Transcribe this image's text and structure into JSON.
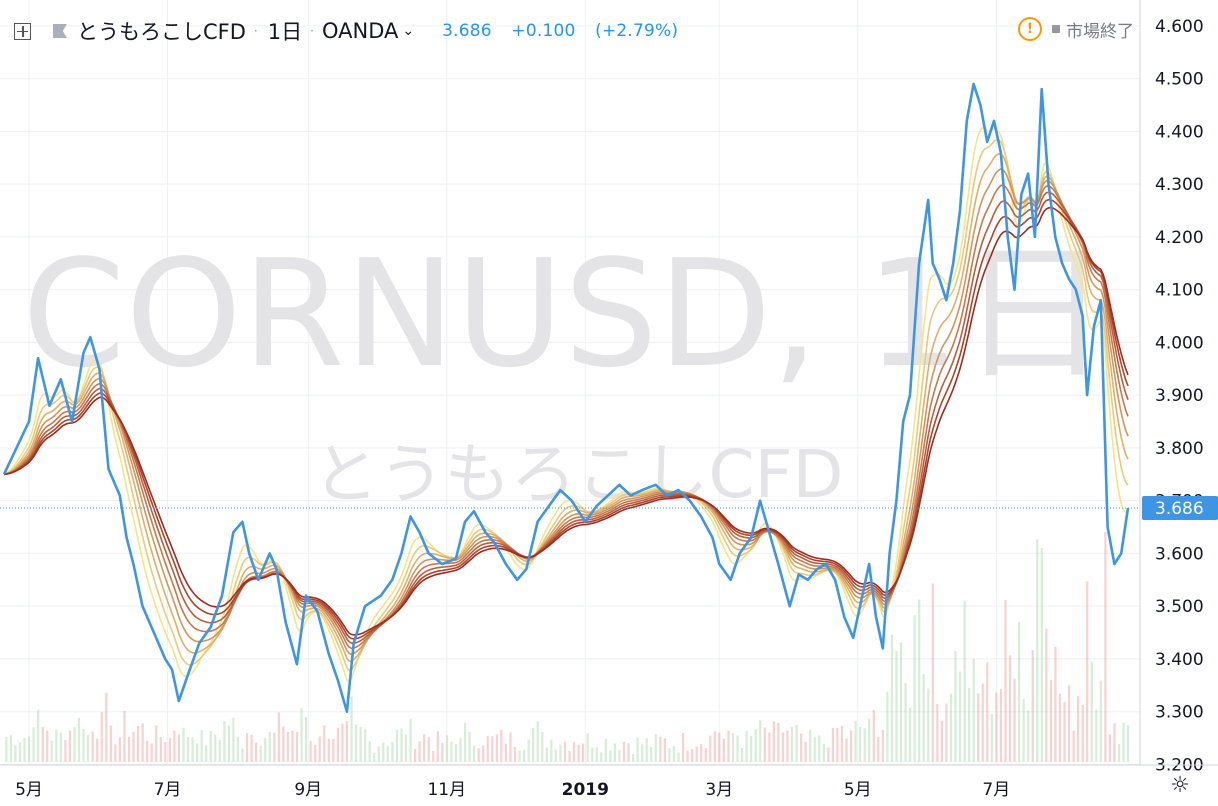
{
  "header": {
    "symbol_name": "とうもろこしCFD",
    "timeframe": "1日",
    "exchange": "OANDA",
    "last": "3.686",
    "change": "+0.100",
    "change_pct": "(+2.79%)"
  },
  "status": {
    "label": "市場終了"
  },
  "watermark": {
    "line1": "CORNUSD, 1日",
    "line2": "とうもろこしCFD"
  },
  "price_badge": "3.686",
  "colors": {
    "price_line": "#3d95e3",
    "badge_bg": "#3d95e3",
    "grid": "#eef0f3",
    "vol_up": "#a5d6a7",
    "vol_down": "#ef9a9a",
    "ribbon_fast": "#f7e38a",
    "ribbon_slow": "#a02a1e",
    "warning": "#ff9800"
  },
  "chart_data": {
    "type": "line",
    "title": "とうもろこしCFD, 1日, OANDA",
    "x_axis": {
      "ticks": [
        "5月",
        "7月",
        "9月",
        "11月",
        "2019",
        "3月",
        "5月",
        "7月"
      ],
      "start": "2018-04-20",
      "end": "2019-08-28"
    },
    "y_axis": {
      "ticks": [
        "3.200",
        "3.300",
        "3.400",
        "3.500",
        "3.600",
        "3.700",
        "3.800",
        "3.900",
        "4.000",
        "4.100",
        "4.200",
        "4.300",
        "4.400",
        "4.500",
        "4.600"
      ],
      "min": 3.18,
      "max": 4.63
    },
    "series": [
      {
        "name": "CORNUSD",
        "points": [
          [
            "2018-04-20",
            3.75
          ],
          [
            "2018-05-01",
            3.85
          ],
          [
            "2018-05-05",
            3.97
          ],
          [
            "2018-05-10",
            3.88
          ],
          [
            "2018-05-15",
            3.93
          ],
          [
            "2018-05-20",
            3.85
          ],
          [
            "2018-05-25",
            3.98
          ],
          [
            "2018-05-28",
            4.01
          ],
          [
            "2018-06-01",
            3.95
          ],
          [
            "2018-06-05",
            3.76
          ],
          [
            "2018-06-10",
            3.71
          ],
          [
            "2018-06-13",
            3.63
          ],
          [
            "2018-06-16",
            3.58
          ],
          [
            "2018-06-20",
            3.5
          ],
          [
            "2018-06-25",
            3.45
          ],
          [
            "2018-06-30",
            3.4
          ],
          [
            "2018-07-03",
            3.38
          ],
          [
            "2018-07-06",
            3.32
          ],
          [
            "2018-07-10",
            3.37
          ],
          [
            "2018-07-15",
            3.43
          ],
          [
            "2018-07-20",
            3.46
          ],
          [
            "2018-07-25",
            3.52
          ],
          [
            "2018-07-30",
            3.64
          ],
          [
            "2018-08-03",
            3.66
          ],
          [
            "2018-08-06",
            3.6
          ],
          [
            "2018-08-10",
            3.55
          ],
          [
            "2018-08-15",
            3.6
          ],
          [
            "2018-08-18",
            3.57
          ],
          [
            "2018-08-22",
            3.47
          ],
          [
            "2018-08-27",
            3.39
          ],
          [
            "2018-08-31",
            3.52
          ],
          [
            "2018-09-05",
            3.49
          ],
          [
            "2018-09-10",
            3.41
          ],
          [
            "2018-09-14",
            3.36
          ],
          [
            "2018-09-18",
            3.3
          ],
          [
            "2018-09-21",
            3.43
          ],
          [
            "2018-09-26",
            3.5
          ],
          [
            "2018-10-03",
            3.52
          ],
          [
            "2018-10-08",
            3.55
          ],
          [
            "2018-10-12",
            3.6
          ],
          [
            "2018-10-16",
            3.67
          ],
          [
            "2018-10-20",
            3.64
          ],
          [
            "2018-10-24",
            3.6
          ],
          [
            "2018-10-30",
            3.58
          ],
          [
            "2018-11-05",
            3.59
          ],
          [
            "2018-11-09",
            3.66
          ],
          [
            "2018-11-13",
            3.68
          ],
          [
            "2018-11-18",
            3.64
          ],
          [
            "2018-11-22",
            3.62
          ],
          [
            "2018-11-27",
            3.58
          ],
          [
            "2018-12-02",
            3.55
          ],
          [
            "2018-12-06",
            3.57
          ],
          [
            "2018-12-11",
            3.66
          ],
          [
            "2018-12-16",
            3.69
          ],
          [
            "2018-12-21",
            3.72
          ],
          [
            "2018-12-26",
            3.7
          ],
          [
            "2019-01-01",
            3.66
          ],
          [
            "2019-01-06",
            3.69
          ],
          [
            "2019-01-11",
            3.71
          ],
          [
            "2019-01-16",
            3.73
          ],
          [
            "2019-01-21",
            3.71
          ],
          [
            "2019-01-26",
            3.72
          ],
          [
            "2019-02-01",
            3.73
          ],
          [
            "2019-02-06",
            3.71
          ],
          [
            "2019-02-11",
            3.72
          ],
          [
            "2019-02-16",
            3.7
          ],
          [
            "2019-02-21",
            3.67
          ],
          [
            "2019-02-26",
            3.63
          ],
          [
            "2019-03-01",
            3.58
          ],
          [
            "2019-03-06",
            3.55
          ],
          [
            "2019-03-10",
            3.6
          ],
          [
            "2019-03-15",
            3.63
          ],
          [
            "2019-03-19",
            3.7
          ],
          [
            "2019-03-23",
            3.64
          ],
          [
            "2019-03-27",
            3.58
          ],
          [
            "2019-04-01",
            3.5
          ],
          [
            "2019-04-05",
            3.56
          ],
          [
            "2019-04-09",
            3.55
          ],
          [
            "2019-04-13",
            3.57
          ],
          [
            "2019-04-17",
            3.58
          ],
          [
            "2019-04-21",
            3.55
          ],
          [
            "2019-04-25",
            3.48
          ],
          [
            "2019-04-29",
            3.44
          ],
          [
            "2019-05-03",
            3.52
          ],
          [
            "2019-05-06",
            3.58
          ],
          [
            "2019-05-09",
            3.48
          ],
          [
            "2019-05-12",
            3.42
          ],
          [
            "2019-05-15",
            3.6
          ],
          [
            "2019-05-18",
            3.7
          ],
          [
            "2019-05-21",
            3.85
          ],
          [
            "2019-05-24",
            3.9
          ],
          [
            "2019-05-28",
            4.15
          ],
          [
            "2019-06-01",
            4.27
          ],
          [
            "2019-06-03",
            4.15
          ],
          [
            "2019-06-06",
            4.12
          ],
          [
            "2019-06-09",
            4.08
          ],
          [
            "2019-06-12",
            4.15
          ],
          [
            "2019-06-15",
            4.25
          ],
          [
            "2019-06-18",
            4.42
          ],
          [
            "2019-06-21",
            4.49
          ],
          [
            "2019-06-24",
            4.45
          ],
          [
            "2019-06-27",
            4.38
          ],
          [
            "2019-06-30",
            4.42
          ],
          [
            "2019-07-03",
            4.36
          ],
          [
            "2019-07-06",
            4.2
          ],
          [
            "2019-07-09",
            4.1
          ],
          [
            "2019-07-12",
            4.28
          ],
          [
            "2019-07-15",
            4.32
          ],
          [
            "2019-07-18",
            4.2
          ],
          [
            "2019-07-21",
            4.48
          ],
          [
            "2019-07-24",
            4.3
          ],
          [
            "2019-07-27",
            4.2
          ],
          [
            "2019-07-30",
            4.15
          ],
          [
            "2019-08-02",
            4.12
          ],
          [
            "2019-08-05",
            4.1
          ],
          [
            "2019-08-08",
            4.05
          ],
          [
            "2019-08-10",
            3.9
          ],
          [
            "2019-08-13",
            4.03
          ],
          [
            "2019-08-16",
            4.08
          ],
          [
            "2019-08-19",
            3.65
          ],
          [
            "2019-08-22",
            3.58
          ],
          [
            "2019-08-25",
            3.6
          ],
          [
            "2019-08-28",
            3.686
          ]
        ]
      }
    ],
    "current_value": 3.686,
    "ribbon_periods": [
      10,
      15,
      20,
      25,
      30,
      35,
      40,
      45
    ]
  }
}
